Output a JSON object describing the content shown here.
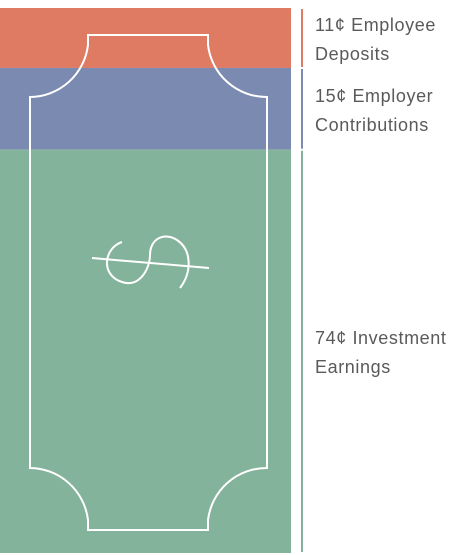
{
  "chart_data": {
    "type": "bar",
    "stacked": true,
    "series": [
      {
        "name": "Employee Deposits",
        "color": "#e07b63",
        "values": [
          11
        ],
        "value_labels": [
          "11¢"
        ]
      },
      {
        "name": "Employer Contributions",
        "color": "#7b8ab0",
        "values": [
          15
        ],
        "value_labels": [
          "15¢"
        ]
      },
      {
        "name": "Investment Earnings",
        "color": "#84b39b",
        "values": [
          74
        ],
        "value_labels": [
          "74¢"
        ]
      }
    ]
  }
}
